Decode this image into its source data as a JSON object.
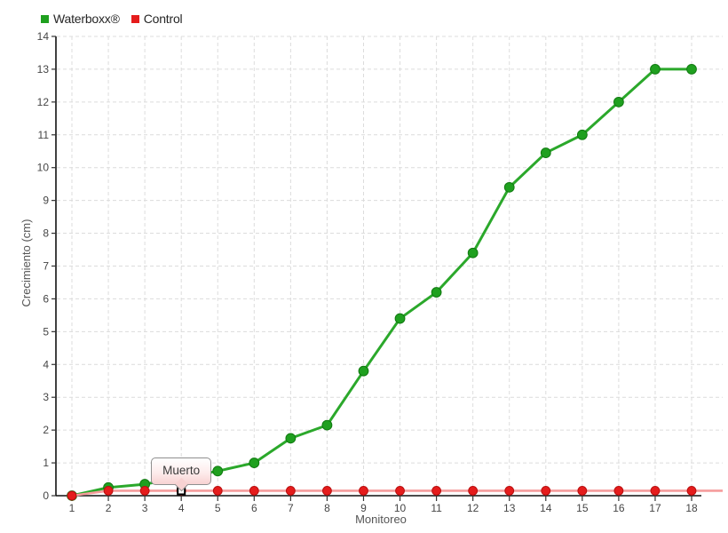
{
  "chart_data": {
    "type": "line",
    "title": "",
    "xlabel": "Monitoreo",
    "ylabel": "Crecimiento (cm)",
    "x": [
      1,
      2,
      3,
      4,
      5,
      6,
      7,
      8,
      9,
      10,
      11,
      12,
      13,
      14,
      15,
      16,
      17,
      18
    ],
    "xlim": [
      1,
      18
    ],
    "ylim": [
      0,
      14
    ],
    "y_tick_step": 1,
    "grid": true,
    "legend_position": "top-left",
    "series": [
      {
        "name": "Waterboxx®",
        "color": "#2ba82b",
        "marker_color": "#1fa01f",
        "marker_stroke": "#117a11",
        "values": [
          0,
          0.25,
          0.35,
          0.55,
          0.75,
          1.0,
          1.75,
          2.15,
          3.8,
          5.4,
          6.2,
          7.4,
          9.4,
          10.45,
          11.0,
          12.0,
          13.0,
          13.0
        ],
        "extend_right": false
      },
      {
        "name": "Control",
        "color": "#f59c9c",
        "marker_color": "#e51c1c",
        "marker_stroke": "#b90f0f",
        "values": [
          0,
          0.15,
          0.15,
          0.15,
          0.15,
          0.15,
          0.15,
          0.15,
          0.15,
          0.15,
          0.15,
          0.15,
          0.15,
          0.15,
          0.15,
          0.15,
          0.15,
          0.15
        ],
        "extend_right": true
      }
    ],
    "annotations": [
      {
        "series": "Control",
        "x": 4,
        "y": 0.15,
        "text": "Muerto"
      }
    ],
    "colors": {
      "grid": "#dcdcdc",
      "axis": "#111111",
      "tick_text": "#454545",
      "axis_title_text": "#555555"
    }
  }
}
